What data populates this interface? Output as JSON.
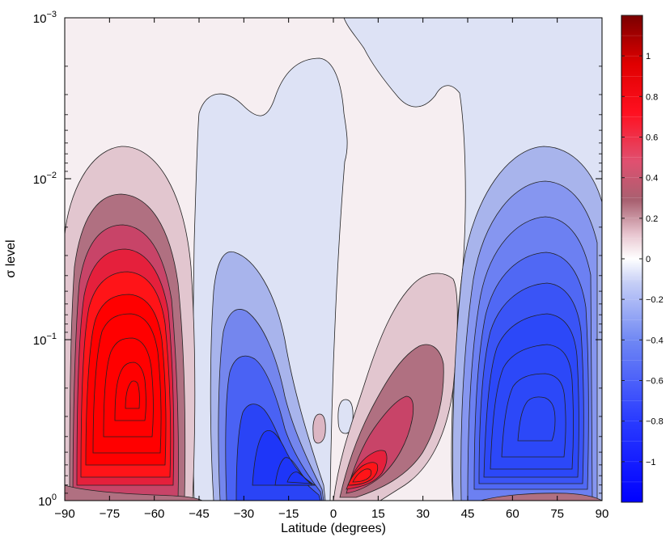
{
  "chart_data": {
    "type": "contour",
    "title": "",
    "xlabel": "Latitude (degrees)",
    "ylabel": "σ level",
    "xlim": [
      -90,
      90
    ],
    "ylim_log": [
      1,
      0.001
    ],
    "yscale": "log",
    "x_ticks": [
      {
        "value": -90,
        "label": "−90"
      },
      {
        "value": -75,
        "label": "−75"
      },
      {
        "value": -60,
        "label": "−60"
      },
      {
        "value": -45,
        "label": "−45"
      },
      {
        "value": -30,
        "label": "−30"
      },
      {
        "value": -15,
        "label": "−15"
      },
      {
        "value": 0,
        "label": "0"
      },
      {
        "value": 15,
        "label": "15"
      },
      {
        "value": 30,
        "label": "30"
      },
      {
        "value": 45,
        "label": "45"
      },
      {
        "value": 60,
        "label": "60"
      },
      {
        "value": 75,
        "label": "75"
      },
      {
        "value": 90,
        "label": "90"
      }
    ],
    "y_ticks": [
      {
        "value": 1,
        "base": "10",
        "exp": "0"
      },
      {
        "value": 0.1,
        "base": "10",
        "exp": "−1"
      },
      {
        "value": 0.01,
        "base": "10",
        "exp": "−2"
      },
      {
        "value": 0.001,
        "base": "10",
        "exp": "−3"
      }
    ],
    "colorbar": {
      "range": [
        -1.2,
        1.2
      ],
      "tick_values": [
        1,
        0.8,
        0.6,
        0.4,
        0.2,
        0,
        -0.2,
        -0.4,
        -0.6,
        -0.8,
        -1
      ],
      "tick_labels": [
        "1",
        "0.8",
        "0.6",
        "0.4",
        "0.2",
        "0",
        "−0.2",
        "−0.4",
        "−0.6",
        "−0.8",
        "−1"
      ],
      "colormap": "blue-white-red (diverging)",
      "negative_color": "#0000ff",
      "positive_color": "#ff0000",
      "max_color": "#7a0000"
    },
    "features": [
      {
        "name": "southern polar cell maximum",
        "lat": -62,
        "sigma": 0.22,
        "value": 0.85
      },
      {
        "name": "southern midlatitude negative cell",
        "lat": -8,
        "sigma": 0.75,
        "value": -0.6
      },
      {
        "name": "northern tropical positive cell",
        "lat": 5,
        "sigma": 0.75,
        "value": 0.7
      },
      {
        "name": "northern polar cell minimum",
        "lat": 65,
        "sigma": 0.22,
        "value": -0.65
      }
    ]
  }
}
